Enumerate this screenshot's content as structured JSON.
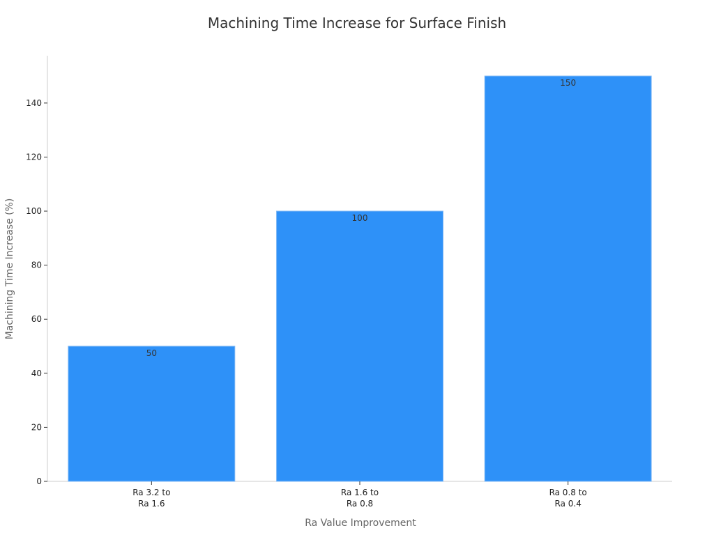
{
  "chart_data": {
    "type": "bar",
    "title": "Machining Time Increase for Surface Finish",
    "xlabel": "Ra Value Improvement",
    "ylabel": "Machining Time Increase (%)",
    "categories": [
      [
        "Ra 3.2 to",
        "Ra 1.6"
      ],
      [
        "Ra 1.6 to",
        "Ra 0.8"
      ],
      [
        "Ra 0.8 to",
        "Ra 0.4"
      ]
    ],
    "values": [
      50,
      100,
      150
    ],
    "data_labels": [
      "50",
      "100",
      "150"
    ],
    "ylim": [
      0,
      157.5
    ],
    "yticks": [
      0,
      20,
      40,
      60,
      80,
      100,
      120,
      140
    ],
    "grid": false,
    "bar_color": "#2e91f8"
  }
}
